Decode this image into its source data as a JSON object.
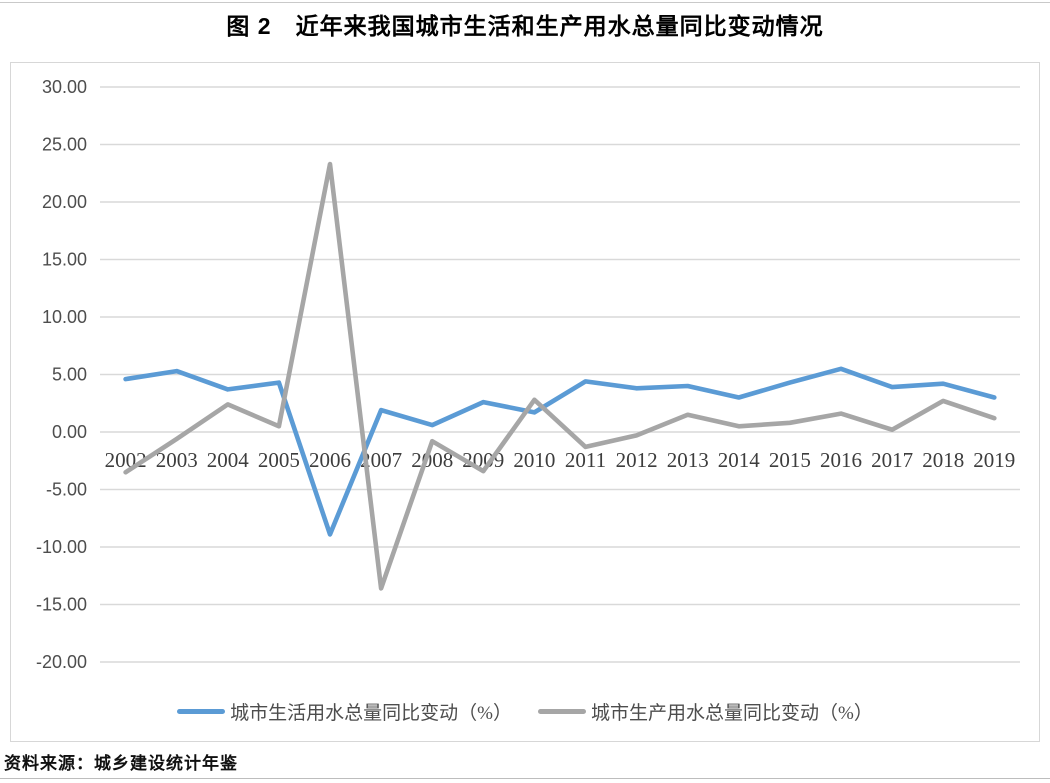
{
  "title": "图 2　近年来我国城市生活和生产用水总量同比变动情况",
  "source_note": "资料来源：城乡建设统计年鉴",
  "colors": {
    "series_domestic": "#5B9BD5",
    "series_production": "#A6A6A6",
    "gridline": "#D9D9D9",
    "chart_border": "#D7D7D7",
    "y_tick_text": "#4D4D4D",
    "x_tick_text": "#3D3D3D",
    "legend_text": "#4D4D4D"
  },
  "chart_data": {
    "type": "line",
    "title": "图 2　近年来我国城市生活和生产用水总量同比变动情况",
    "categories": [
      "2002",
      "2003",
      "2004",
      "2005",
      "2006",
      "2007",
      "2008",
      "2009",
      "2010",
      "2011",
      "2012",
      "2013",
      "2014",
      "2015",
      "2016",
      "2017",
      "2018",
      "2019"
    ],
    "series": [
      {
        "name": "城市生活用水总量同比变动（%）",
        "color": "#5B9BD5",
        "values": [
          4.6,
          5.3,
          3.7,
          4.3,
          -8.9,
          1.9,
          0.6,
          2.6,
          1.7,
          4.4,
          3.8,
          4.0,
          3.0,
          4.3,
          5.5,
          3.9,
          4.2,
          3.0
        ]
      },
      {
        "name": "城市生产用水总量同比变动（%）",
        "color": "#A6A6A6",
        "values": [
          -3.5,
          -0.6,
          2.4,
          0.5,
          23.3,
          -13.6,
          -0.8,
          -3.4,
          2.8,
          -1.3,
          -0.3,
          1.5,
          0.5,
          0.8,
          1.6,
          0.2,
          2.7,
          1.2
        ]
      }
    ],
    "xlabel": "",
    "ylabel": "",
    "ylim": [
      -20,
      30
    ],
    "ytick_step": 5,
    "ytick_format": "two-decimals",
    "grid": true,
    "legend_position": "bottom",
    "x_labels_below_zero_line": true
  }
}
